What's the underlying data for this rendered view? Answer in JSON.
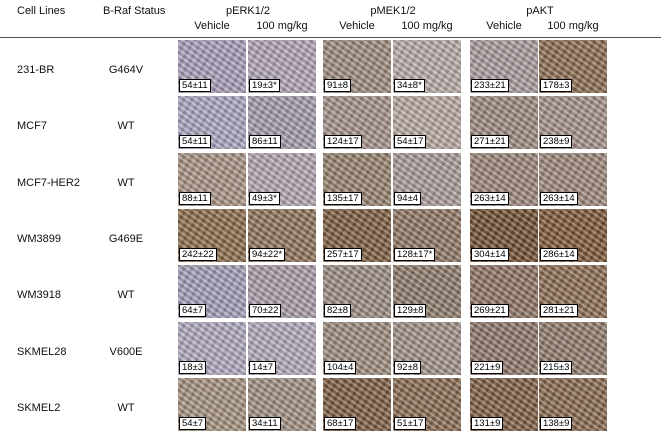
{
  "header": {
    "cell_lines": "Cell Lines",
    "braf_status": "B-Raf Status",
    "markers": [
      "pERK1/2",
      "pMEK1/2",
      "pAKT"
    ],
    "treatments": [
      "Vehicle",
      "100 mg/kg",
      "Vehicle",
      "100 mg/kg",
      "Vehicle",
      "100 mg/kg"
    ]
  },
  "rows": [
    {
      "cell_line": "231-BR",
      "status": "G464V",
      "values": [
        "54±11",
        "19±3*",
        "91±8",
        "34±8*",
        "233±21",
        "178±3"
      ]
    },
    {
      "cell_line": "MCF7",
      "status": "WT",
      "values": [
        "54±11",
        "86±11",
        "124±17",
        "54±17",
        "271±21",
        "238±9"
      ]
    },
    {
      "cell_line": "MCF7-HER2",
      "status": "WT",
      "values": [
        "88±11",
        "49±3*",
        "135±17",
        "94±4",
        "263±14",
        "263±14"
      ]
    },
    {
      "cell_line": "WM3899",
      "status": "G469E",
      "values": [
        "242±22",
        "94±22*",
        "257±17",
        "128±17*",
        "304±14",
        "286±14"
      ]
    },
    {
      "cell_line": "WM3918",
      "status": "WT",
      "values": [
        "64±7",
        "70±22",
        "82±8",
        "129±8",
        "269±21",
        "281±21"
      ]
    },
    {
      "cell_line": "SKMEL28",
      "status": "V600E",
      "values": [
        "18±3",
        "14±7",
        "104±4",
        "92±8",
        "221±9",
        "215±3"
      ]
    },
    {
      "cell_line": "SKMEL2",
      "status": "WT",
      "values": [
        "54±7",
        "34±11",
        "68±17",
        "51±17",
        "131±9",
        "138±9"
      ]
    }
  ]
}
